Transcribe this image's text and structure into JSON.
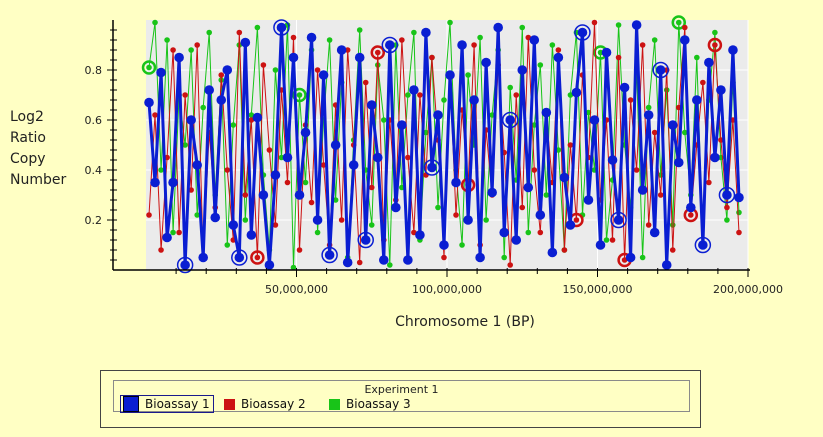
{
  "chart_data": {
    "type": "line",
    "title": "",
    "xlabel": "Chromosome 1 (BP)",
    "ylabel": [
      "Log2",
      "Ratio",
      "Copy",
      "Number"
    ],
    "x_ticks": [
      50000000,
      100000000,
      150000000,
      200000000
    ],
    "x_tick_labels": [
      "50,000,000",
      "100,000,000",
      "150,000,000",
      "200,000,000"
    ],
    "y_ticks": [
      0.2,
      0.4,
      0.6,
      0.8
    ],
    "y_tick_labels": [
      "0.2",
      "0.4",
      "0.6",
      "0.8"
    ],
    "xlim": [
      0,
      200000000
    ],
    "ylim": [
      0,
      1.0
    ],
    "grid": true,
    "legend": {
      "title": "Experiment 1",
      "position": "bottom",
      "entries": [
        "Bioassay 1",
        "Bioassay 2",
        "Bioassay 3"
      ],
      "selected": "Bioassay 1"
    },
    "series": [
      {
        "name": "Bioassay 1",
        "color": "#0a1ed2",
        "marker": "large",
        "x": [
          1000000,
          3000000,
          5000000,
          7000000,
          9000000,
          11000000,
          13000000,
          15000000,
          17000000,
          19000000,
          21000000,
          23000000,
          25000000,
          27000000,
          29000000,
          31000000,
          33000000,
          35000000,
          37000000,
          39000000,
          41000000,
          43000000,
          45000000,
          47000000,
          49000000,
          51000000,
          53000000,
          55000000,
          57000000,
          59000000,
          61000000,
          63000000,
          65000000,
          67000000,
          69000000,
          71000000,
          73000000,
          75000000,
          77000000,
          79000000,
          81000000,
          83000000,
          85000000,
          87000000,
          89000000,
          91000000,
          93000000,
          95000000,
          97000000,
          99000000,
          101000000,
          103000000,
          105000000,
          107000000,
          109000000,
          111000000,
          113000000,
          115000000,
          117000000,
          119000000,
          121000000,
          123000000,
          125000000,
          127000000,
          129000000,
          131000000,
          133000000,
          135000000,
          137000000,
          139000000,
          141000000,
          143000000,
          145000000,
          147000000,
          149000000,
          151000000,
          153000000,
          155000000,
          157000000,
          159000000,
          161000000,
          163000000,
          165000000,
          167000000,
          169000000,
          171000000,
          173000000,
          175000000,
          177000000,
          179000000,
          181000000,
          183000000,
          185000000,
          187000000,
          189000000,
          191000000,
          193000000,
          195000000,
          197000000
        ],
        "values": [
          0.67,
          0.35,
          0.79,
          0.13,
          0.35,
          0.85,
          0.02,
          0.6,
          0.42,
          0.05,
          0.72,
          0.21,
          0.68,
          0.8,
          0.18,
          0.05,
          0.91,
          0.14,
          0.61,
          0.3,
          0.02,
          0.38,
          0.97,
          0.45,
          0.85,
          0.3,
          0.55,
          0.93,
          0.2,
          0.78,
          0.06,
          0.5,
          0.88,
          0.03,
          0.42,
          0.85,
          0.12,
          0.66,
          0.45,
          0.04,
          0.9,
          0.25,
          0.58,
          0.04,
          0.72,
          0.14,
          0.95,
          0.41,
          0.62,
          0.1,
          0.78,
          0.35,
          0.9,
          0.2,
          0.68,
          0.05,
          0.83,
          0.31,
          0.97,
          0.15,
          0.6,
          0.12,
          0.8,
          0.33,
          0.92,
          0.22,
          0.63,
          0.07,
          0.85,
          0.37,
          0.18,
          0.71,
          0.95,
          0.28,
          0.6,
          0.1,
          0.87,
          0.44,
          0.2,
          0.73,
          0.05,
          0.98,
          0.32,
          0.62,
          0.15,
          0.8,
          0.02,
          0.58,
          0.43,
          0.92,
          0.25,
          0.68,
          0.1,
          0.83,
          0.45,
          0.72,
          0.3,
          0.88,
          0.29
        ],
        "highlight_indices": [
          6,
          15,
          22,
          30,
          36,
          40,
          47,
          60,
          72,
          78,
          85,
          92,
          96
        ]
      },
      {
        "name": "Bioassay 2",
        "color": "#cc1212",
        "marker": "small",
        "x": [
          1000000,
          3000000,
          5000000,
          7000000,
          9000000,
          11000000,
          13000000,
          15000000,
          17000000,
          19000000,
          21000000,
          23000000,
          25000000,
          27000000,
          29000000,
          31000000,
          33000000,
          35000000,
          37000000,
          39000000,
          41000000,
          43000000,
          45000000,
          47000000,
          49000000,
          51000000,
          53000000,
          55000000,
          57000000,
          59000000,
          61000000,
          63000000,
          65000000,
          67000000,
          69000000,
          71000000,
          73000000,
          75000000,
          77000000,
          79000000,
          81000000,
          83000000,
          85000000,
          87000000,
          89000000,
          91000000,
          93000000,
          95000000,
          97000000,
          99000000,
          101000000,
          103000000,
          105000000,
          107000000,
          109000000,
          111000000,
          113000000,
          115000000,
          117000000,
          119000000,
          121000000,
          123000000,
          125000000,
          127000000,
          129000000,
          131000000,
          133000000,
          135000000,
          137000000,
          139000000,
          141000000,
          143000000,
          145000000,
          147000000,
          149000000,
          151000000,
          153000000,
          155000000,
          157000000,
          159000000,
          161000000,
          163000000,
          165000000,
          167000000,
          169000000,
          171000000,
          173000000,
          175000000,
          177000000,
          179000000,
          181000000,
          183000000,
          185000000,
          187000000,
          189000000,
          191000000,
          193000000,
          195000000,
          197000000
        ],
        "values": [
          0.22,
          0.62,
          0.08,
          0.45,
          0.88,
          0.15,
          0.7,
          0.32,
          0.9,
          0.05,
          0.55,
          0.25,
          0.78,
          0.4,
          0.12,
          0.95,
          0.3,
          0.6,
          0.05,
          0.82,
          0.48,
          0.18,
          0.72,
          0.35,
          0.93,
          0.08,
          0.58,
          0.27,
          0.8,
          0.42,
          0.1,
          0.66,
          0.2,
          0.88,
          0.5,
          0.03,
          0.75,
          0.33,
          0.87,
          0.12,
          0.6,
          0.28,
          0.92,
          0.45,
          0.15,
          0.7,
          0.38,
          0.85,
          0.52,
          0.05,
          0.77,
          0.22,
          0.64,
          0.34,
          0.9,
          0.1,
          0.56,
          0.3,
          0.82,
          0.47,
          0.02,
          0.7,
          0.25,
          0.93,
          0.4,
          0.15,
          0.62,
          0.35,
          0.88,
          0.08,
          0.5,
          0.2,
          0.78,
          0.45,
          0.99,
          0.28,
          0.6,
          0.12,
          0.85,
          0.04,
          0.68,
          0.4,
          0.9,
          0.18,
          0.55,
          0.3,
          0.8,
          0.08,
          0.65,
          0.97,
          0.22,
          0.5,
          0.75,
          0.35,
          0.9,
          0.52,
          0.25,
          0.6,
          0.15
        ],
        "highlight_indices": [
          18,
          38,
          53,
          71,
          79,
          90,
          94
        ]
      },
      {
        "name": "Bioassay 3",
        "color": "#18c418",
        "marker": "small",
        "x": [
          1000000,
          3000000,
          5000000,
          7000000,
          9000000,
          11000000,
          13000000,
          15000000,
          17000000,
          19000000,
          21000000,
          23000000,
          25000000,
          27000000,
          29000000,
          31000000,
          33000000,
          35000000,
          37000000,
          39000000,
          41000000,
          43000000,
          45000000,
          47000000,
          49000000,
          51000000,
          53000000,
          55000000,
          57000000,
          59000000,
          61000000,
          63000000,
          65000000,
          67000000,
          69000000,
          71000000,
          73000000,
          75000000,
          77000000,
          79000000,
          81000000,
          83000000,
          85000000,
          87000000,
          89000000,
          91000000,
          93000000,
          95000000,
          97000000,
          99000000,
          101000000,
          103000000,
          105000000,
          107000000,
          109000000,
          111000000,
          113000000,
          115000000,
          117000000,
          119000000,
          121000000,
          123000000,
          125000000,
          127000000,
          129000000,
          131000000,
          133000000,
          135000000,
          137000000,
          139000000,
          141000000,
          143000000,
          145000000,
          147000000,
          149000000,
          151000000,
          153000000,
          155000000,
          157000000,
          159000000,
          161000000,
          163000000,
          165000000,
          167000000,
          169000000,
          171000000,
          173000000,
          175000000,
          177000000,
          179000000,
          181000000,
          183000000,
          185000000,
          187000000,
          189000000,
          191000000,
          193000000,
          195000000,
          197000000
        ],
        "values": [
          0.81,
          0.99,
          0.4,
          0.92,
          0.15,
          0.7,
          0.5,
          0.88,
          0.22,
          0.65,
          0.95,
          0.3,
          0.76,
          0.1,
          0.58,
          0.9,
          0.2,
          0.62,
          0.97,
          0.38,
          0.08,
          0.8,
          0.45,
          0.98,
          0.01,
          0.7,
          0.35,
          0.88,
          0.15,
          0.6,
          0.92,
          0.28,
          0.75,
          0.05,
          0.52,
          0.96,
          0.4,
          0.18,
          0.82,
          0.6,
          0.02,
          0.9,
          0.33,
          0.7,
          0.95,
          0.12,
          0.55,
          0.85,
          0.25,
          0.68,
          0.99,
          0.4,
          0.1,
          0.78,
          0.5,
          0.93,
          0.2,
          0.62,
          0.88,
          0.05,
          0.73,
          0.36,
          0.97,
          0.15,
          0.58,
          0.82,
          0.3,
          0.9,
          0.48,
          0.08,
          0.7,
          0.95,
          0.22,
          0.63,
          0.4,
          0.87,
          0.12,
          0.36,
          0.98,
          0.5,
          0.25,
          0.8,
          0.05,
          0.65,
          0.92,
          0.38,
          0.72,
          0.18,
          0.99,
          0.55,
          0.3,
          0.85,
          0.1,
          0.68,
          0.95,
          0.45,
          0.2,
          0.75,
          0.23
        ],
        "highlight_indices": [
          0,
          25,
          75,
          88
        ]
      }
    ]
  }
}
